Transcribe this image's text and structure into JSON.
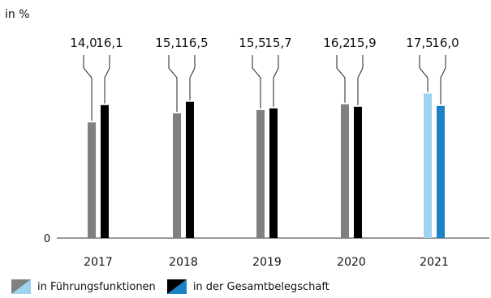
{
  "unit_label": "in %",
  "chart_data": {
    "type": "bar",
    "categories": [
      "2017",
      "2018",
      "2019",
      "2020",
      "2021"
    ],
    "series": [
      {
        "name": "in Führungsfunktionen",
        "values": [
          14.0,
          15.1,
          15.5,
          16.2,
          17.5
        ],
        "labels": [
          "14,0",
          "15,1",
          "15,5",
          "16,2",
          "17,5"
        ]
      },
      {
        "name": "in der Gesamtbelegschaft",
        "values": [
          16.1,
          16.5,
          15.7,
          15.9,
          16.0
        ],
        "labels": [
          "16,1",
          "16,5",
          "15,7",
          "15,9",
          "16,0"
        ]
      }
    ],
    "y_zero_label": "0",
    "ylim": [
      0,
      50
    ],
    "colors": {
      "series1": "#808080",
      "series2": "#000000",
      "series1_highlight": "#9fd3ef",
      "series2_highlight": "#1b82c4",
      "highlight_category": "2021"
    },
    "legend_position": "bottom-left"
  }
}
